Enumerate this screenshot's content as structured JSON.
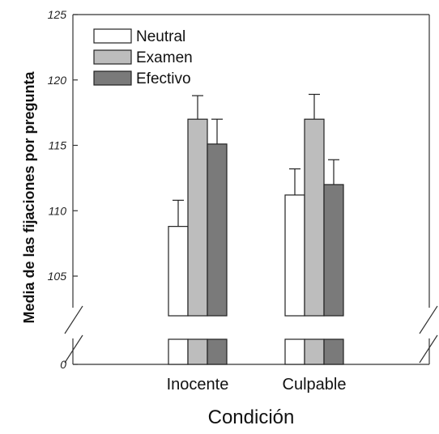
{
  "chart_data": {
    "type": "bar",
    "title": "",
    "xlabel": "Condición",
    "ylabel": "Media de las fijaciones por pregunta",
    "categories": [
      "Inocente",
      "Culpable"
    ],
    "series": [
      {
        "name": "Neutral",
        "color": "#ffffff",
        "values": [
          108.8,
          111.2
        ],
        "errors": [
          2.0,
          2.0
        ]
      },
      {
        "name": "Examen",
        "color": "#bdbdbd",
        "values": [
          117.0,
          117.0
        ],
        "errors": [
          1.8,
          1.9
        ]
      },
      {
        "name": "Efectivo",
        "color": "#7a7a7a",
        "values": [
          115.1,
          112.0
        ],
        "errors": [
          1.9,
          1.9
        ]
      }
    ],
    "ylim": [
      102,
      125
    ],
    "yticks": [
      "125",
      "120",
      "115",
      "110",
      "105",
      "0"
    ],
    "axis_break": true,
    "legend_position": "top-left",
    "grid": false
  }
}
